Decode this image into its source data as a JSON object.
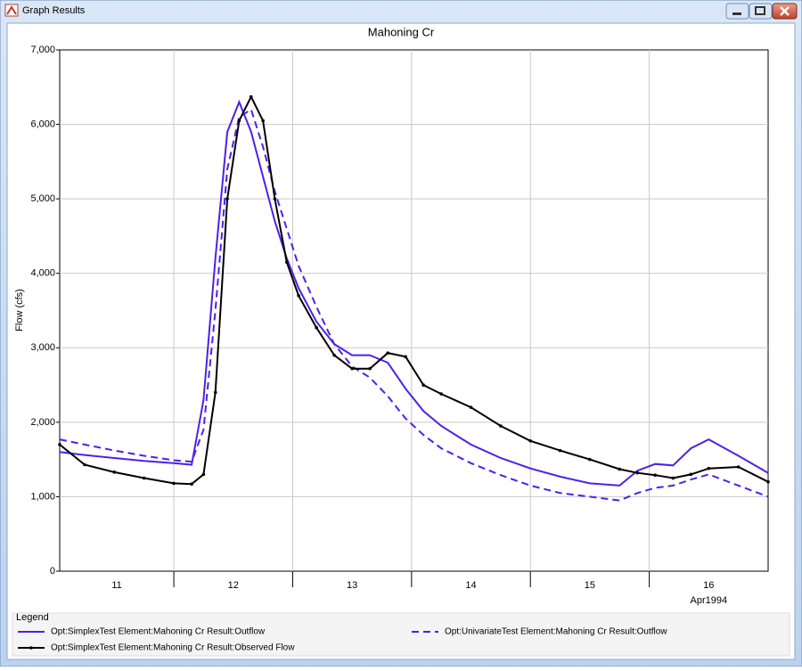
{
  "window": {
    "title": "Graph Results"
  },
  "chart_data": {
    "type": "line",
    "title": "Mahoning Cr",
    "ylabel": "Flow (cfs)",
    "x_sublabel": "Apr1994",
    "legend_title": "Legend",
    "legend": "bottom",
    "grid": true,
    "xlim": [
      11.04,
      17.0
    ],
    "xticks": [
      {
        "value": 11,
        "label": "11"
      },
      {
        "value": 12,
        "label": "12"
      },
      {
        "value": 13,
        "label": "13"
      },
      {
        "value": 14,
        "label": "14"
      },
      {
        "value": 15,
        "label": "15"
      },
      {
        "value": 16,
        "label": "16"
      }
    ],
    "ylim": [
      0,
      7000
    ],
    "yticks": [
      0,
      {
        "value": 1000,
        "label": "1,000"
      },
      {
        "value": 2000,
        "label": "2,000"
      },
      {
        "value": 3000,
        "label": "3,000"
      },
      {
        "value": 4000,
        "label": "4,000"
      },
      {
        "value": 5000,
        "label": "5,000"
      },
      {
        "value": 6000,
        "label": "6,000"
      },
      {
        "value": 7000,
        "label": "7,000"
      }
    ],
    "x": [
      11.04,
      11.25,
      11.5,
      11.75,
      12.0,
      12.15,
      12.25,
      12.35,
      12.45,
      12.55,
      12.65,
      12.75,
      12.85,
      12.95,
      13.05,
      13.2,
      13.35,
      13.5,
      13.65,
      13.8,
      13.95,
      14.1,
      14.25,
      14.5,
      14.75,
      15.0,
      15.25,
      15.5,
      15.75,
      15.9,
      16.05,
      16.2,
      16.35,
      16.5,
      16.75,
      17.0
    ],
    "series": [
      {
        "name": "Opt:SimplexTest Element:Mahoning Cr Result:Outflow",
        "color": "#4a22e8",
        "style": "solid",
        "markers": false,
        "values": [
          1600,
          1560,
          1520,
          1480,
          1450,
          1430,
          2300,
          4200,
          5900,
          6300,
          5900,
          5300,
          4700,
          4200,
          3800,
          3350,
          3050,
          2900,
          2900,
          2800,
          2450,
          2150,
          1950,
          1700,
          1520,
          1380,
          1270,
          1180,
          1150,
          1350,
          1440,
          1420,
          1650,
          1770,
          1550,
          1320
        ]
      },
      {
        "name": "Opt:UnivariateTest Element:Mahoning Cr Result:Outflow",
        "color": "#4a22e8",
        "style": "dashed",
        "markers": false,
        "values": [
          1770,
          1700,
          1620,
          1550,
          1490,
          1470,
          1900,
          3500,
          5400,
          6100,
          6200,
          5700,
          5100,
          4600,
          4100,
          3550,
          3050,
          2750,
          2600,
          2350,
          2050,
          1830,
          1650,
          1450,
          1290,
          1150,
          1050,
          1000,
          950,
          1050,
          1120,
          1150,
          1230,
          1300,
          1150,
          1000
        ]
      },
      {
        "name": "Opt:SimplexTest Element:Mahoning Cr Result:Observed Flow",
        "color": "#000000",
        "style": "solid",
        "markers": true,
        "values": [
          1700,
          1430,
          1330,
          1250,
          1180,
          1170,
          1300,
          2400,
          5000,
          6050,
          6370,
          6050,
          5000,
          4150,
          3700,
          3270,
          2900,
          2720,
          2720,
          2930,
          2880,
          2500,
          2380,
          2200,
          1950,
          1750,
          1620,
          1500,
          1370,
          1320,
          1290,
          1250,
          1300,
          1380,
          1400,
          1200
        ]
      }
    ]
  }
}
